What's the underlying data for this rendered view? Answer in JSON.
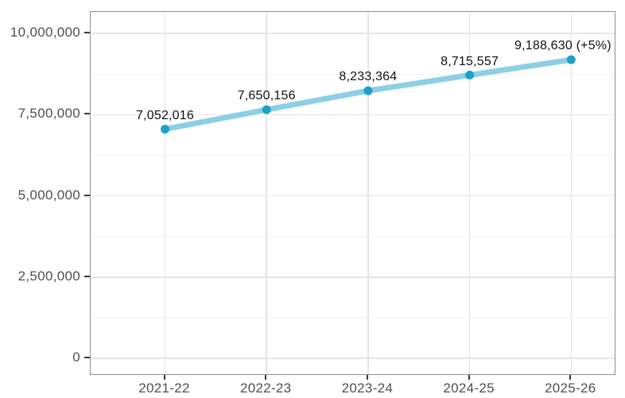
{
  "chart_data": {
    "type": "line",
    "title": "",
    "xlabel": "",
    "ylabel": "",
    "categories": [
      "2021-22",
      "2022-23",
      "2023-24",
      "2024-25",
      "2025-26"
    ],
    "values": [
      7052016,
      7650156,
      8233364,
      8715557,
      9188630
    ],
    "point_labels": [
      "7,052,016",
      "7,650,156",
      "8,233,364",
      "8,715,557",
      "9,188,630 (+5%)"
    ],
    "ylim": [
      0,
      10000000
    ],
    "y_ticks": {
      "values": [
        0,
        2500000,
        5000000,
        7500000,
        10000000
      ],
      "labels": [
        "0",
        "2,500,000",
        "5,000,000",
        "7,500,000",
        "10,000,000"
      ]
    },
    "grid": {
      "horizontal": "major+minor",
      "vertical": "major"
    },
    "legend_position": "none",
    "colors": {
      "line": "#8CCFE6",
      "point": "#1F9FCA",
      "grid_major": "#e5e5e5",
      "grid_minor": "#f1f1f1",
      "panel_border": "#8d8d8d",
      "tick_mark": "#383838",
      "axis_text": "#4f4f4f",
      "data_label": "#111111",
      "background": "#ffffff"
    }
  }
}
